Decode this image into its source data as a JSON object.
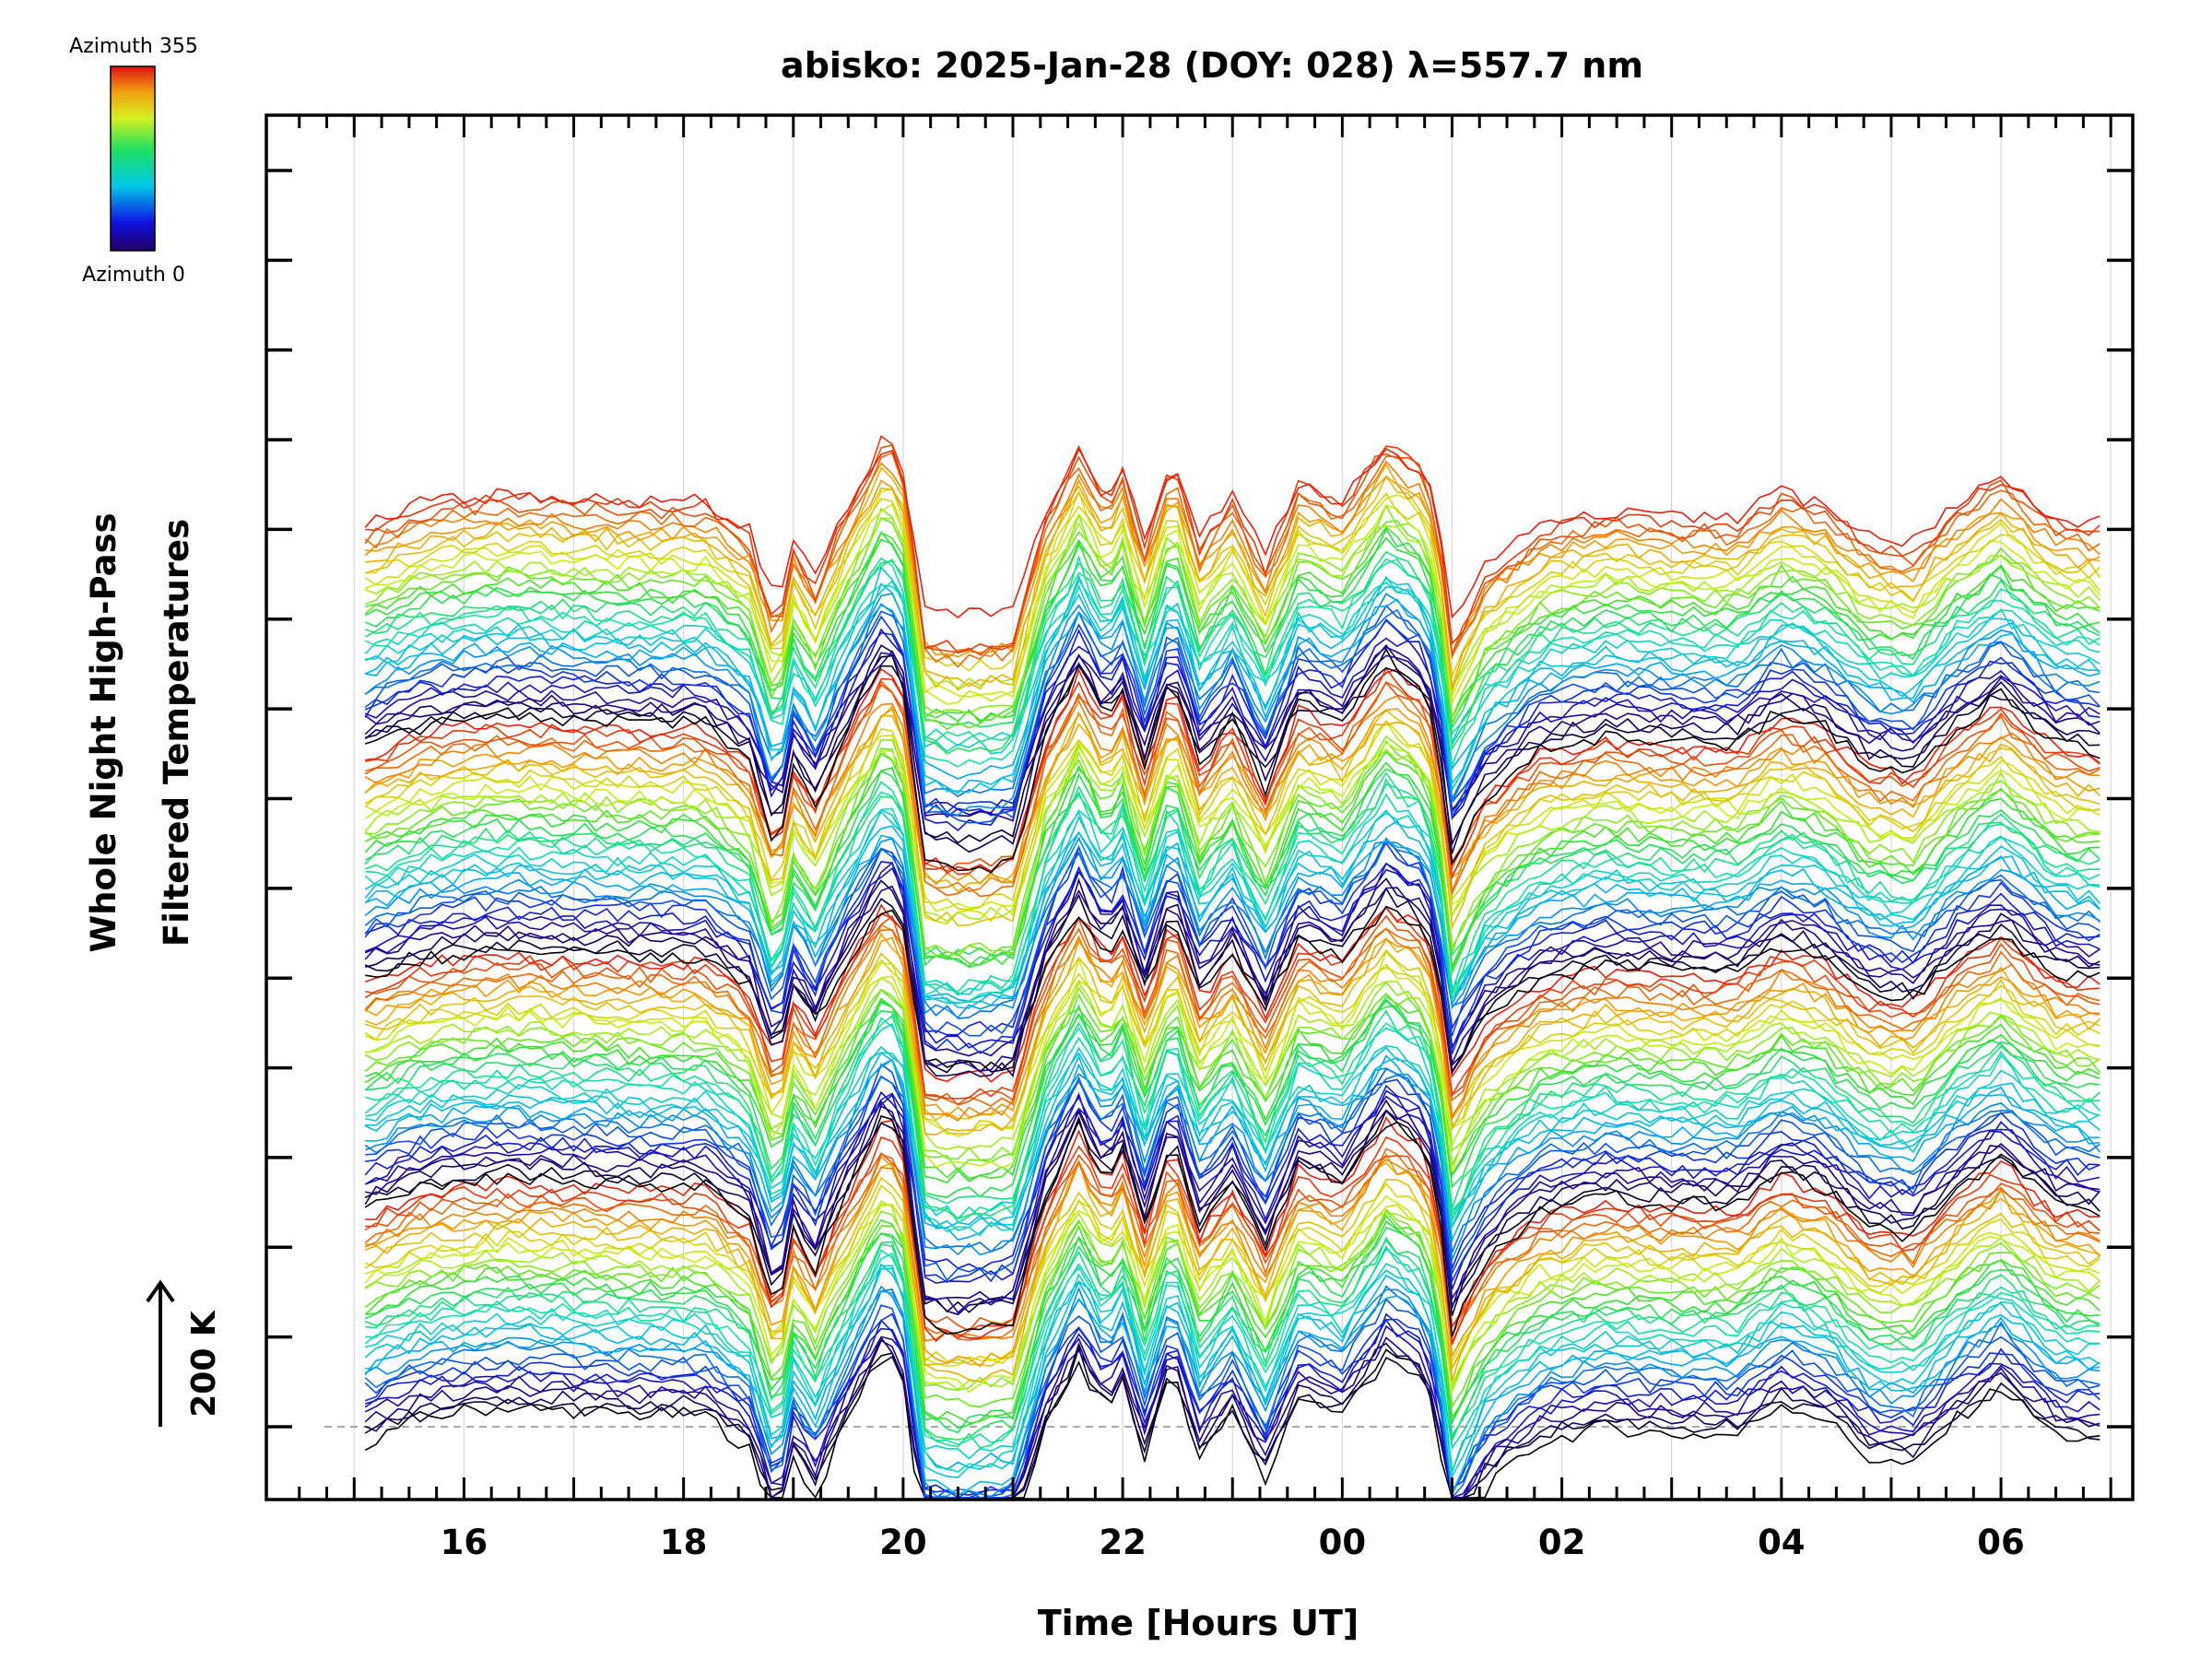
{
  "chart_data": {
    "type": "line",
    "title": "abisko: 2025-Jan-28 (DOY: 028) λ=557.7 nm",
    "xlabel": "Time [Hours UT]",
    "ylabel_line1": "Whole Night High-Pass",
    "ylabel_line2": "Filtered Temperatures",
    "x_ticks": [
      "16",
      "18",
      "20",
      "22",
      "00",
      "02",
      "04",
      "06"
    ],
    "x_tick_hours": [
      16,
      18,
      20,
      22,
      24,
      26,
      28,
      30
    ],
    "xlim": [
      14.2,
      31.2
    ],
    "x_data_range": [
      15.1,
      30.9
    ],
    "y_ticks_count": 15,
    "scale_marker": {
      "arrow": "up-arrow-icon",
      "label": "200 K"
    },
    "colorbar": {
      "top_label": "Azimuth 355",
      "bottom_label": "Azimuth 0",
      "colormap": "rainbow"
    },
    "series_count": 144,
    "cycle_length": 36,
    "baseline_dashed": true,
    "grid": "vertical hourly lines",
    "common_profile": {
      "hours": [
        15.1,
        15.6,
        16.0,
        16.4,
        17.0,
        17.6,
        18.2,
        18.6,
        18.85,
        19.0,
        19.2,
        19.4,
        19.6,
        19.85,
        20.0,
        20.2,
        20.5,
        21.0,
        21.3,
        21.6,
        21.85,
        22.0,
        22.2,
        22.45,
        22.7,
        23.0,
        23.3,
        23.6,
        24.0,
        24.4,
        24.7,
        24.85,
        25.0,
        25.3,
        25.8,
        26.4,
        27.0,
        27.6,
        28.0,
        28.4,
        28.8,
        29.2,
        29.6,
        30.0,
        30.5,
        30.9
      ],
      "values_K": [
        -20,
        10,
        20,
        25,
        20,
        15,
        15,
        -30,
        -150,
        -40,
        -90,
        -20,
        40,
        110,
        60,
        -160,
        -170,
        -160,
        0,
        90,
        20,
        60,
        -40,
        80,
        -40,
        20,
        -70,
        40,
        15,
        100,
        70,
        20,
        -170,
        -80,
        -20,
        0,
        -10,
        -10,
        30,
        10,
        -40,
        -50,
        10,
        50,
        -10,
        -20
      ]
    },
    "colors": {
      "background": "#ffffff",
      "axis": "#000000",
      "grid": "#d8d8d8",
      "baseline": "#aaaaaa"
    }
  }
}
